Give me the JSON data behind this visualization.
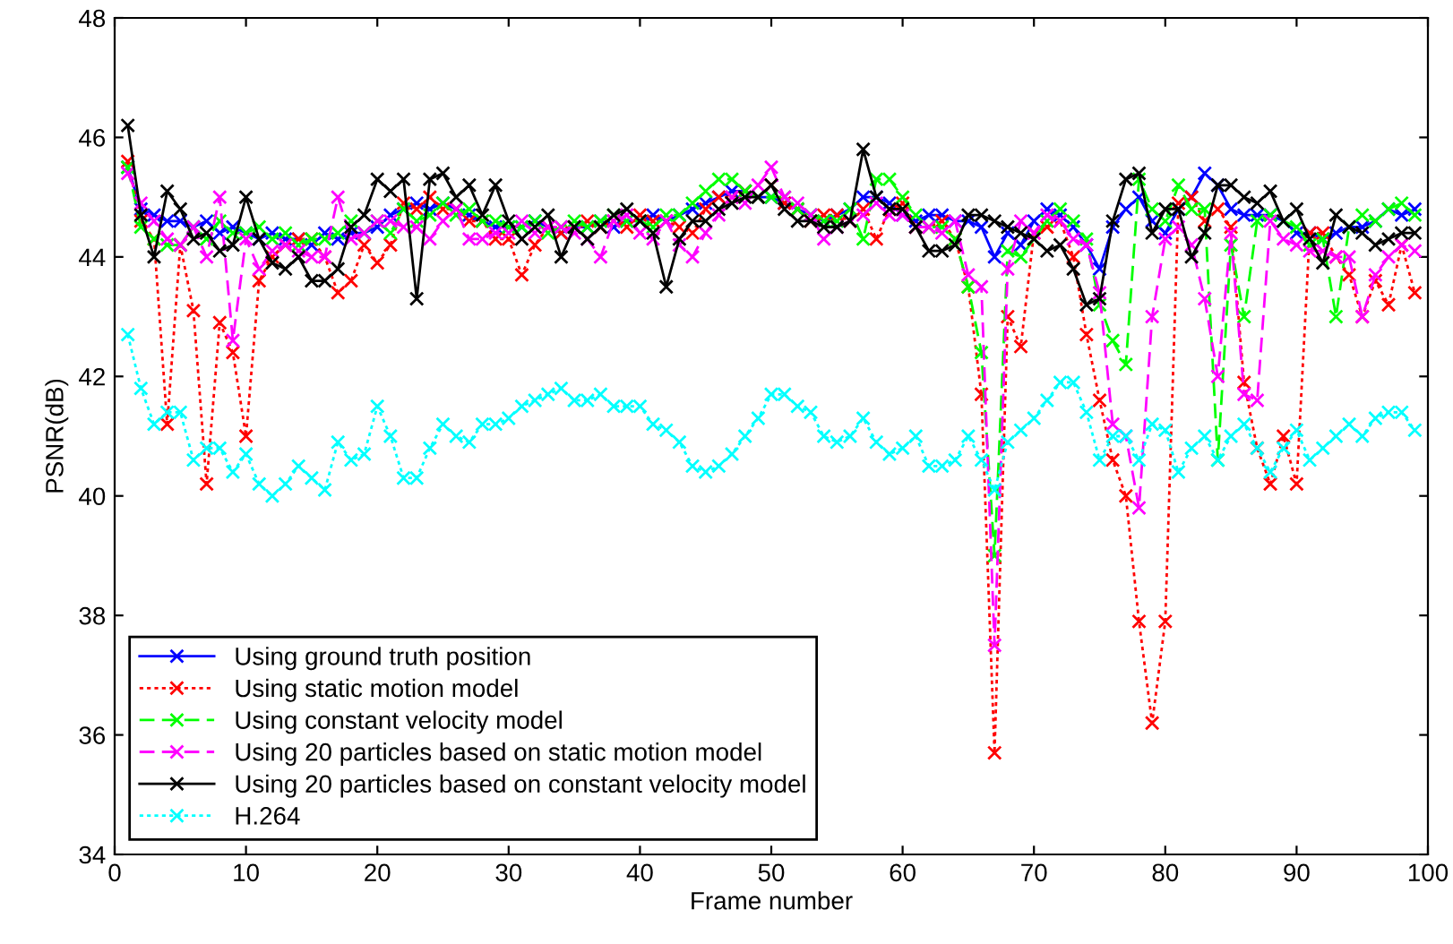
{
  "chart_data": {
    "type": "line",
    "xlabel": "Frame number",
    "ylabel": "PSNR(dB)",
    "xlim": [
      0,
      100
    ],
    "ylim": [
      34,
      48
    ],
    "xticks": [
      0,
      10,
      20,
      30,
      40,
      50,
      60,
      70,
      80,
      90,
      100
    ],
    "yticks": [
      34,
      36,
      38,
      40,
      42,
      44,
      46,
      48
    ],
    "grid": false,
    "legend": "bottom left",
    "marker": "cross",
    "x": [
      1,
      2,
      3,
      4,
      5,
      6,
      7,
      8,
      9,
      10,
      11,
      12,
      13,
      14,
      15,
      16,
      17,
      18,
      19,
      20,
      21,
      22,
      23,
      24,
      25,
      26,
      27,
      28,
      29,
      30,
      31,
      32,
      33,
      34,
      35,
      36,
      37,
      38,
      39,
      40,
      41,
      42,
      43,
      44,
      45,
      46,
      47,
      48,
      49,
      50,
      51,
      52,
      53,
      54,
      55,
      56,
      57,
      58,
      59,
      60,
      61,
      62,
      63,
      64,
      65,
      66,
      67,
      68,
      69,
      70,
      71,
      72,
      73,
      74,
      75,
      76,
      77,
      78,
      79,
      80,
      81,
      82,
      83,
      84,
      85,
      86,
      87,
      88,
      89,
      90,
      91,
      92,
      93,
      94,
      95,
      96,
      97,
      98,
      99
    ],
    "series": [
      {
        "name": "Using ground truth position",
        "color": "#0000ff",
        "line_style": "solid",
        "values": [
          45.5,
          44.8,
          44.7,
          44.6,
          44.6,
          44.5,
          44.6,
          44.4,
          44.5,
          44.4,
          44.3,
          44.4,
          44.3,
          44.3,
          44.2,
          44.4,
          44.3,
          44.4,
          44.4,
          44.5,
          44.7,
          44.8,
          44.9,
          44.8,
          44.9,
          44.8,
          44.7,
          44.6,
          44.5,
          44.5,
          44.5,
          44.6,
          44.5,
          44.4,
          44.5,
          44.5,
          44.6,
          44.5,
          44.6,
          44.6,
          44.7,
          44.6,
          44.7,
          44.8,
          44.9,
          45.0,
          45.1,
          45.1,
          45.0,
          45.0,
          44.9,
          44.8,
          44.7,
          44.6,
          44.7,
          44.8,
          45.0,
          45.0,
          44.9,
          44.7,
          44.6,
          44.7,
          44.7,
          44.6,
          44.6,
          44.5,
          44.0,
          44.4,
          44.2,
          44.6,
          44.8,
          44.7,
          44.5,
          44.2,
          43.8,
          44.5,
          44.8,
          45.0,
          44.6,
          44.4,
          44.8,
          45.0,
          45.4,
          45.2,
          44.8,
          44.7,
          44.7,
          44.7,
          44.6,
          44.4,
          44.4,
          44.3,
          44.4,
          44.5,
          44.5,
          44.6,
          44.8,
          44.7,
          44.8
        ]
      },
      {
        "name": "Using static motion model",
        "color": "#ff0000",
        "line_style": "dotted",
        "values": [
          45.6,
          44.6,
          44.3,
          41.2,
          44.2,
          43.1,
          40.2,
          42.9,
          42.4,
          41.0,
          43.6,
          44.0,
          44.2,
          44.3,
          44.3,
          44.0,
          43.4,
          43.6,
          44.2,
          43.9,
          44.2,
          44.9,
          44.8,
          45.0,
          44.8,
          44.8,
          44.6,
          44.6,
          44.3,
          44.3,
          43.7,
          44.2,
          44.5,
          44.4,
          44.5,
          44.6,
          44.5,
          44.6,
          44.5,
          44.7,
          44.6,
          44.6,
          44.5,
          44.4,
          44.8,
          45.0,
          45.0,
          45.1,
          45.0,
          45.2,
          44.9,
          44.8,
          44.6,
          44.7,
          44.7,
          44.6,
          44.8,
          44.3,
          44.8,
          44.9,
          44.5,
          44.5,
          44.6,
          44.3,
          43.5,
          41.7,
          35.7,
          43.0,
          42.5,
          44.4,
          44.5,
          44.6,
          44.0,
          42.7,
          41.6,
          40.6,
          40.0,
          37.9,
          36.2,
          37.9,
          44.9,
          45.0,
          44.6,
          44.8,
          44.5,
          41.9,
          40.8,
          40.2,
          41.0,
          40.2,
          44.4,
          44.4,
          44.0,
          43.7,
          43.0,
          43.6,
          43.2,
          44.2,
          43.4
        ]
      },
      {
        "name": "Using constant velocity model",
        "color": "#00ff00",
        "line_style": "dashed",
        "values": [
          45.5,
          44.5,
          44.3,
          44.2,
          44.2,
          44.5,
          44.3,
          44.6,
          44.4,
          44.4,
          44.5,
          44.3,
          44.4,
          44.2,
          44.3,
          44.3,
          44.4,
          44.6,
          44.4,
          44.6,
          44.4,
          44.8,
          44.6,
          44.7,
          44.9,
          44.7,
          44.8,
          44.6,
          44.6,
          44.5,
          44.5,
          44.6,
          44.4,
          44.5,
          44.6,
          44.5,
          44.6,
          44.7,
          44.6,
          44.6,
          44.5,
          44.7,
          44.7,
          44.9,
          45.1,
          45.3,
          45.3,
          45.1,
          45.0,
          45.0,
          45.0,
          44.8,
          44.7,
          44.6,
          44.6,
          44.8,
          44.3,
          45.3,
          45.3,
          45.0,
          44.7,
          44.5,
          44.5,
          44.3,
          43.5,
          42.4,
          39.0,
          44.1,
          44.0,
          44.3,
          44.6,
          44.8,
          44.6,
          44.3,
          43.2,
          42.6,
          42.2,
          45.3,
          44.8,
          44.6,
          45.2,
          44.8,
          44.8,
          40.6,
          44.2,
          43.0,
          44.6,
          44.7,
          44.6,
          44.5,
          44.2,
          44.3,
          43.0,
          44.5,
          44.7,
          44.6,
          44.8,
          44.9,
          44.7
        ]
      },
      {
        "name": "Using 20 particles based on static motion model",
        "color": "#ff00ff",
        "line_style": "dashed",
        "values": [
          45.4,
          44.9,
          44.6,
          44.3,
          44.2,
          44.5,
          44.0,
          45.0,
          42.6,
          44.3,
          43.8,
          44.1,
          44.2,
          44.1,
          44.0,
          44.0,
          45.0,
          44.3,
          44.4,
          44.6,
          44.6,
          44.5,
          44.5,
          44.3,
          44.6,
          44.8,
          44.3,
          44.3,
          44.4,
          44.4,
          44.6,
          44.4,
          44.5,
          44.5,
          44.4,
          44.3,
          44.0,
          44.6,
          44.7,
          44.4,
          44.3,
          44.6,
          44.2,
          44.0,
          44.4,
          44.7,
          45.0,
          44.9,
          45.2,
          45.5,
          45.0,
          44.9,
          44.7,
          44.3,
          44.5,
          44.6,
          44.7,
          44.9,
          44.7,
          44.7,
          44.5,
          44.5,
          44.4,
          44.6,
          43.7,
          43.5,
          37.5,
          43.8,
          44.6,
          44.4,
          44.7,
          44.6,
          44.3,
          44.2,
          43.4,
          41.2,
          41.0,
          39.8,
          43.0,
          44.3,
          44.5,
          44.2,
          43.3,
          42.0,
          44.4,
          41.7,
          41.6,
          44.6,
          44.3,
          44.2,
          44.1,
          44.1,
          44.0,
          44.0,
          43.0,
          43.7,
          44.0,
          44.2,
          44.1
        ]
      },
      {
        "name": "Using 20 particles based on constant velocity model",
        "color": "#000000",
        "line_style": "solid",
        "values": [
          46.2,
          44.7,
          44.0,
          45.1,
          44.8,
          44.3,
          44.4,
          44.1,
          44.2,
          45.0,
          44.3,
          43.9,
          43.8,
          44.0,
          43.6,
          43.6,
          43.8,
          44.5,
          44.7,
          45.3,
          45.1,
          45.3,
          43.3,
          45.3,
          45.4,
          45.0,
          45.2,
          44.7,
          45.2,
          44.6,
          44.3,
          44.5,
          44.7,
          44.0,
          44.5,
          44.3,
          44.5,
          44.7,
          44.8,
          44.6,
          44.4,
          43.5,
          44.3,
          44.6,
          44.6,
          44.8,
          44.9,
          45.0,
          45.0,
          45.2,
          44.8,
          44.6,
          44.6,
          44.5,
          44.5,
          44.6,
          45.8,
          45.0,
          44.8,
          44.8,
          44.5,
          44.1,
          44.1,
          44.2,
          44.7,
          44.7,
          44.6,
          44.5,
          44.4,
          44.3,
          44.1,
          44.2,
          43.8,
          43.2,
          43.3,
          44.6,
          45.3,
          45.4,
          44.4,
          44.8,
          44.8,
          44.0,
          44.4,
          45.2,
          45.2,
          45.0,
          44.9,
          45.1,
          44.6,
          44.8,
          44.3,
          43.9,
          44.7,
          44.5,
          44.4,
          44.2,
          44.3,
          44.4,
          44.4
        ]
      },
      {
        "name": "H.264",
        "color": "#00ffff",
        "line_style": "dotted",
        "values": [
          42.7,
          41.8,
          41.2,
          41.4,
          41.4,
          40.6,
          40.8,
          40.8,
          40.4,
          40.7,
          40.2,
          40.0,
          40.2,
          40.5,
          40.3,
          40.1,
          40.9,
          40.6,
          40.7,
          41.5,
          41.0,
          40.3,
          40.3,
          40.8,
          41.2,
          41.0,
          40.9,
          41.2,
          41.2,
          41.3,
          41.5,
          41.6,
          41.7,
          41.8,
          41.6,
          41.6,
          41.7,
          41.5,
          41.5,
          41.5,
          41.2,
          41.1,
          40.9,
          40.5,
          40.4,
          40.5,
          40.7,
          41.0,
          41.3,
          41.7,
          41.7,
          41.5,
          41.4,
          41.0,
          40.9,
          41.0,
          41.3,
          40.9,
          40.7,
          40.8,
          41.0,
          40.5,
          40.5,
          40.6,
          41.0,
          40.6,
          40.1,
          40.9,
          41.1,
          41.3,
          41.6,
          41.9,
          41.9,
          41.4,
          40.6,
          41.0,
          41.0,
          40.6,
          41.2,
          41.1,
          40.4,
          40.8,
          41.0,
          40.6,
          41.0,
          41.2,
          40.8,
          40.4,
          40.8,
          41.1,
          40.6,
          40.8,
          41.0,
          41.2,
          41.0,
          41.3,
          41.4,
          41.4,
          41.1
        ]
      }
    ]
  }
}
